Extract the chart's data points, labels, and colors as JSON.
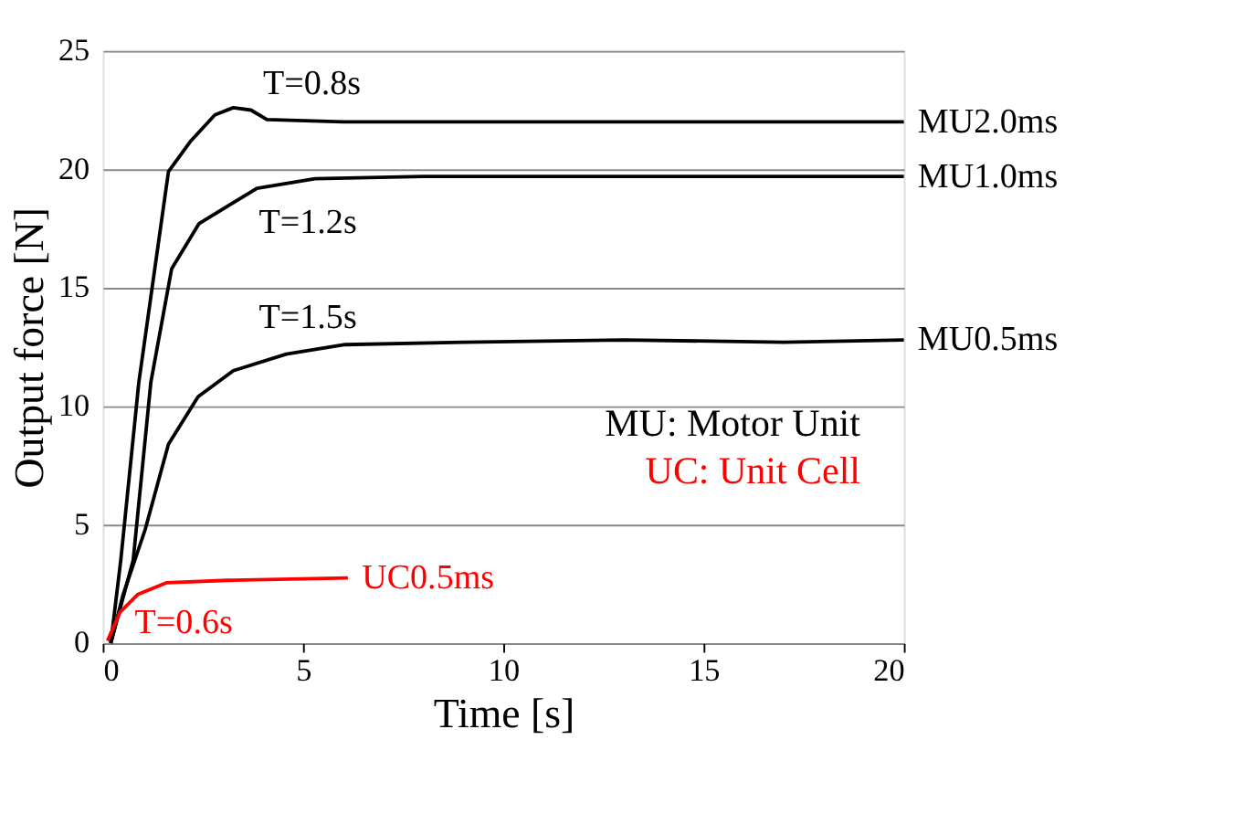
{
  "chart_data": {
    "type": "line",
    "xlabel": "Time [s]",
    "ylabel": "Output force [N]",
    "xlim": [
      0,
      20
    ],
    "xticks": [
      0,
      5,
      10,
      15,
      20
    ],
    "ylim": [
      0,
      25
    ],
    "yticks": [
      0,
      5,
      10,
      15,
      20,
      25
    ],
    "grid": "y",
    "marker": "none",
    "line_style": "solid",
    "series": [
      {
        "name": "MU2.0ms",
        "color": "#000000",
        "x": [
          0.2,
          0.45,
          0.9,
          1.64,
          2.2,
          2.8,
          3.26,
          3.7,
          4.1,
          6,
          10,
          15,
          20
        ],
        "values": [
          0,
          3.5,
          11.0,
          19.9,
          21.2,
          22.3,
          22.6,
          22.5,
          22.1,
          22.0,
          22.0,
          22.0,
          22.0
        ]
      },
      {
        "name": "MU1.0ms",
        "color": "#000000",
        "x": [
          0.2,
          0.76,
          1.2,
          1.72,
          2.4,
          3.85,
          5.3,
          8,
          12,
          16,
          20
        ],
        "values": [
          0,
          3.5,
          11.0,
          15.8,
          17.7,
          19.2,
          19.6,
          19.7,
          19.7,
          19.7,
          19.7
        ]
      },
      {
        "name": "MU0.5ms",
        "color": "#000000",
        "x": [
          0.2,
          0.5,
          1.06,
          1.64,
          2.38,
          3.26,
          4.58,
          6.05,
          9,
          13,
          17,
          20
        ],
        "values": [
          0,
          2.0,
          4.8,
          8.4,
          10.4,
          11.5,
          12.2,
          12.6,
          12.7,
          12.8,
          12.7,
          12.8
        ]
      },
      {
        "name": "UC0.5ms",
        "color": "#ff0000",
        "x": [
          0.12,
          0.43,
          0.87,
          1.6,
          3.1,
          6.12
        ],
        "values": [
          0.1,
          1.3,
          2.05,
          2.55,
          2.65,
          2.75
        ]
      }
    ],
    "annotations": [
      "T=0.8s",
      "T=1.2s",
      "T=1.5s",
      "T=0.6s",
      "MU: Motor Unit",
      "UC: Unit Cell"
    ]
  }
}
